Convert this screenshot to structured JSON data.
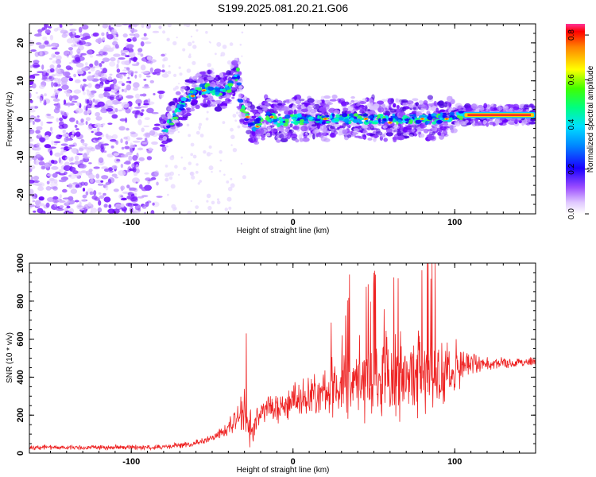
{
  "title": "S199.2025.081.20.21.G06",
  "colors": {
    "snr_line": "#ee2222",
    "blob_low": "#c8a0ff",
    "blob_mid": "#6a00ff",
    "ridge": "#00e0ff",
    "core": "#ff2a2a",
    "axis": "#000000"
  },
  "chart_data": [
    {
      "type": "heatmap",
      "xlabel": "Height of straight line (km)",
      "ylabel": "Frequency (Hz)",
      "xlim": [
        -163,
        150
      ],
      "ylim": [
        -25,
        25
      ],
      "x_ticks": [
        -100,
        0,
        100
      ],
      "y_ticks": [
        -20,
        -10,
        0,
        10,
        20
      ],
      "grid": false,
      "colorbar": {
        "label": "Normalized spectral amplitude",
        "range": [
          0,
          0.85
        ],
        "ticks": [
          "0.0",
          "0.2",
          "0.4",
          "0.6",
          "0.8"
        ],
        "colormap": "rainbow"
      },
      "noise_region": {
        "x_range": [
          -163,
          -80
        ],
        "y_range": [
          -25,
          25
        ]
      },
      "ridge_path": {
        "x": [
          -82,
          -76,
          -70,
          -64,
          -58,
          -52,
          -46,
          -40,
          -34,
          -32,
          -28,
          -24,
          -18,
          -14,
          -8,
          0,
          10,
          20,
          30,
          40,
          50,
          60,
          70,
          80,
          90,
          100,
          110,
          120,
          130,
          150
        ],
        "y": [
          -5,
          -1,
          3,
          6,
          7.5,
          8,
          7,
          8,
          12,
          3,
          0,
          -2,
          0,
          0.5,
          -1,
          0,
          0,
          0,
          0,
          0,
          0,
          0,
          0,
          0,
          0,
          1,
          1,
          1,
          1,
          1
        ]
      },
      "coherent_line": {
        "x_range": [
          105,
          150
        ],
        "y": 1,
        "amplitude": 0.85
      }
    },
    {
      "type": "line",
      "xlabel": "Height of straight line (km)",
      "ylabel": "SNR (10 * v/v)",
      "xlim": [
        -163,
        150
      ],
      "ylim": [
        0,
        1000
      ],
      "x_ticks": [
        -100,
        0,
        100
      ],
      "y_ticks": [
        0,
        200,
        400,
        600,
        800,
        1000
      ],
      "grid": false,
      "series": [
        {
          "trend_x": [
            -163,
            -140,
            -110,
            -80,
            -70,
            -60,
            -50,
            -40,
            -35,
            -30,
            -25,
            -20,
            -15,
            -10,
            0,
            10,
            20,
            30,
            40,
            50,
            60,
            70,
            80,
            90,
            100,
            110,
            120,
            130,
            140,
            150
          ],
          "trend_y": [
            30,
            30,
            30,
            32,
            40,
            55,
            80,
            120,
            160,
            210,
            100,
            220,
            240,
            230,
            280,
            310,
            330,
            360,
            380,
            390,
            400,
            410,
            410,
            420,
            440,
            470,
            470,
            470,
            480,
            480
          ],
          "spread_x": [
            -163,
            -80,
            -50,
            -40,
            -30,
            -20,
            0,
            20,
            40,
            60,
            80,
            90,
            100,
            110,
            120,
            150
          ],
          "spread_y": [
            15,
            15,
            25,
            60,
            140,
            70,
            110,
            150,
            250,
            290,
            270,
            240,
            150,
            70,
            40,
            30
          ],
          "peaks": [
            {
              "x": -29,
              "y": 630
            },
            {
              "x": 35,
              "y": 940
            },
            {
              "x": 50,
              "y": 950
            },
            {
              "x": 65,
              "y": 920
            },
            {
              "x": 88,
              "y": 1000
            },
            {
              "x": 101,
              "y": 600
            }
          ]
        }
      ]
    }
  ]
}
